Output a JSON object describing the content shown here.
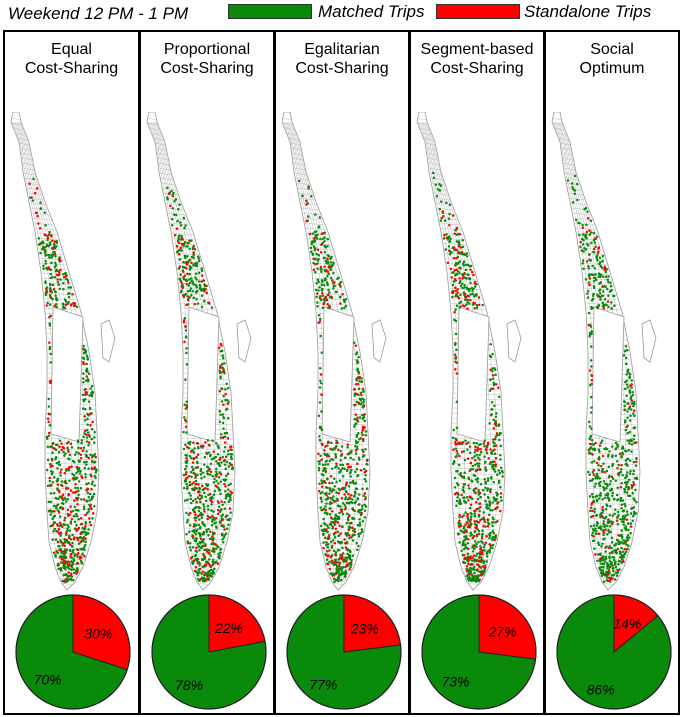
{
  "header": {
    "title": "Weekend 12 PM - 1 PM",
    "legend": [
      {
        "label": "Matched Trips",
        "color": "#0a8a0a"
      },
      {
        "label": "Standalone Trips",
        "color": "#ff0000"
      }
    ]
  },
  "colors": {
    "matched": "#0a8a0a",
    "standalone": "#ff0000",
    "map_lines": "#9a9a9a"
  },
  "panels": [
    {
      "title_line1": "Equal",
      "title_line2": "Cost-Sharing"
    },
    {
      "title_line1": "Proportional",
      "title_line2": "Cost-Sharing"
    },
    {
      "title_line1": "Egalitarian",
      "title_line2": "Cost-Sharing"
    },
    {
      "title_line1": "Segment-based",
      "title_line2": "Cost-Sharing"
    },
    {
      "title_line1": "Social",
      "title_line2": "Optimum"
    }
  ],
  "chart_data": [
    {
      "type": "pie",
      "title": "Equal Cost-Sharing",
      "labels": [
        "Matched Trips",
        "Standalone Trips"
      ],
      "values": [
        70,
        30
      ],
      "data_labels": [
        "70%",
        "30%"
      ],
      "colors": [
        "#0a8a0a",
        "#ff0000"
      ]
    },
    {
      "type": "pie",
      "title": "Proportional Cost-Sharing",
      "labels": [
        "Matched Trips",
        "Standalone Trips"
      ],
      "values": [
        78,
        22
      ],
      "data_labels": [
        "78%",
        "22%"
      ],
      "colors": [
        "#0a8a0a",
        "#ff0000"
      ]
    },
    {
      "type": "pie",
      "title": "Egalitarian Cost-Sharing",
      "labels": [
        "Matched Trips",
        "Standalone Trips"
      ],
      "values": [
        77,
        23
      ],
      "data_labels": [
        "77%",
        "23%"
      ],
      "colors": [
        "#0a8a0a",
        "#ff0000"
      ]
    },
    {
      "type": "pie",
      "title": "Segment-based Cost-Sharing",
      "labels": [
        "Matched Trips",
        "Standalone Trips"
      ],
      "values": [
        73,
        27
      ],
      "data_labels": [
        "73%",
        "27%"
      ],
      "colors": [
        "#0a8a0a",
        "#ff0000"
      ]
    },
    {
      "type": "pie",
      "title": "Social Optimum",
      "labels": [
        "Matched Trips",
        "Standalone Trips"
      ],
      "values": [
        86,
        14
      ],
      "data_labels": [
        "86%",
        "14%"
      ],
      "colors": [
        "#0a8a0a",
        "#ff0000"
      ]
    }
  ]
}
